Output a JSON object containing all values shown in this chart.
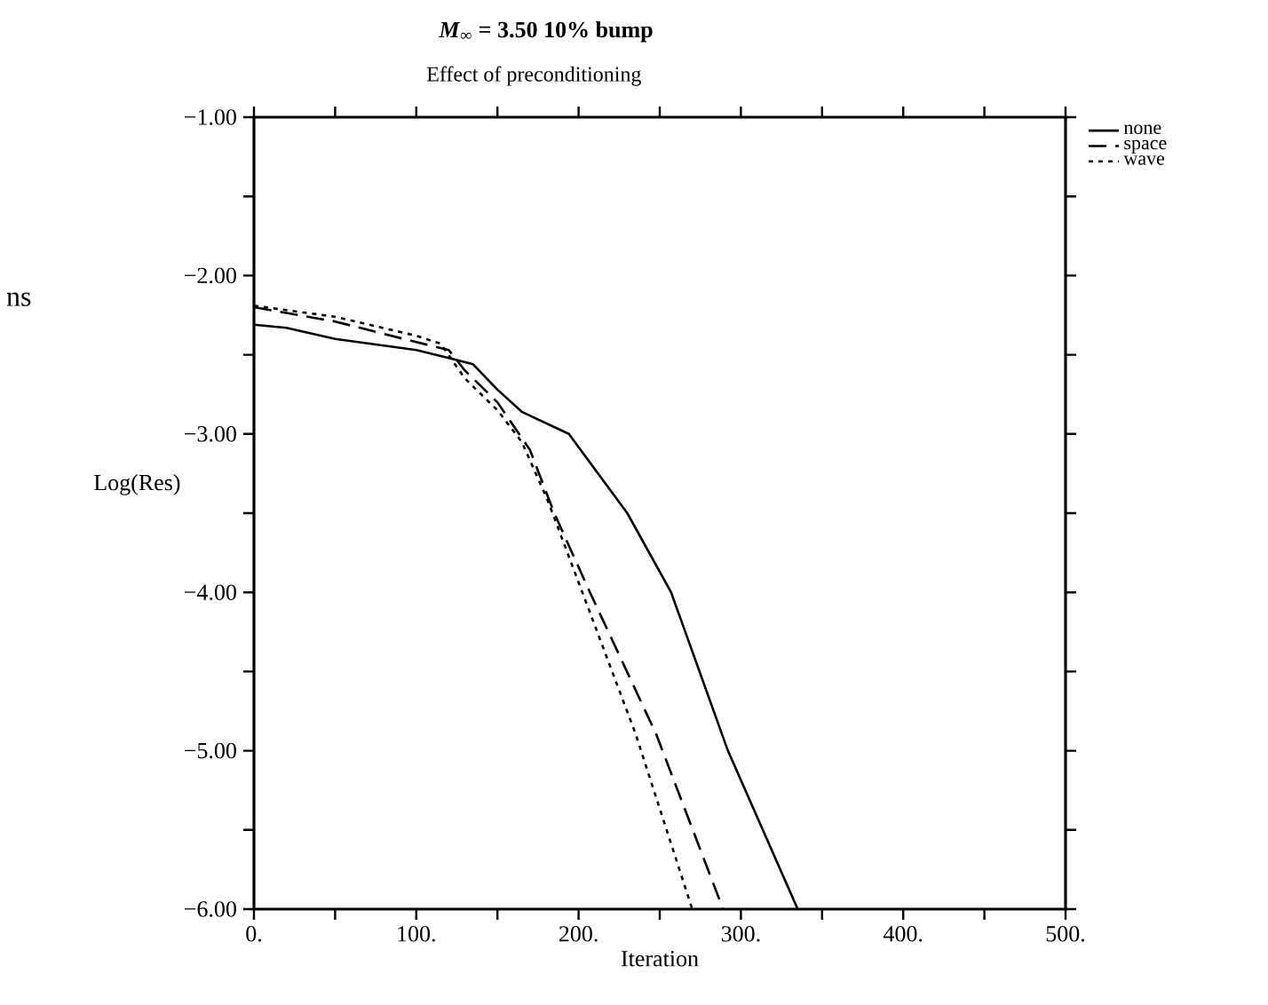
{
  "chart_data": {
    "type": "line",
    "title": "*M*$_{∞}$ = 3.50 10% bump",
    "subtitle": "Effect of preconditioning",
    "xlabel": "Iteration",
    "ylabel": "Log(Res)",
    "annotations": [
      "ns"
    ],
    "xlim": [
      0,
      500
    ],
    "ylim": [
      -6,
      -1
    ],
    "xticks": [
      {
        "value": 0,
        "label": "0."
      },
      {
        "value": 50,
        "label": null
      },
      {
        "value": 100,
        "label": "100."
      },
      {
        "value": 150,
        "label": null
      },
      {
        "value": 200,
        "label": "200."
      },
      {
        "value": 250,
        "label": null
      },
      {
        "value": 300,
        "label": "300."
      },
      {
        "value": 350,
        "label": null
      },
      {
        "value": 400,
        "label": "400."
      },
      {
        "value": 450,
        "label": null
      },
      {
        "value": 500,
        "label": "500."
      }
    ],
    "yticks": [
      {
        "value": -6,
        "label": "−6.00"
      },
      {
        "value": -5.5,
        "label": null
      },
      {
        "value": -5,
        "label": "−5.00"
      },
      {
        "value": -4.5,
        "label": null
      },
      {
        "value": -4,
        "label": "−4.00"
      },
      {
        "value": -3.5,
        "label": null
      },
      {
        "value": -3,
        "label": "−3.00"
      },
      {
        "value": -2.5,
        "label": null
      },
      {
        "value": -2,
        "label": "−2.00"
      },
      {
        "value": -1.5,
        "label": null
      },
      {
        "value": -1,
        "label": "−1.00"
      }
    ],
    "legend": "top right",
    "marker": "none",
    "grid": false,
    "series": [
      {
        "name": "none",
        "color": "#000000",
        "line_style": "solid",
        "x": [
          0,
          20,
          50,
          100,
          120,
          135,
          150,
          165,
          194,
          230,
          257,
          292,
          335
        ],
        "values": [
          -2.31,
          -2.33,
          -2.4,
          -2.47,
          -2.52,
          -2.56,
          -2.72,
          -2.86,
          -3.0,
          -3.5,
          -4.0,
          -5.0,
          -6.0
        ]
      },
      {
        "name": "space",
        "color": "#000000",
        "line_style": "dashed",
        "x": [
          0,
          50,
          100,
          120,
          130,
          150,
          170,
          185,
          207,
          248,
          289
        ],
        "values": [
          -2.2,
          -2.29,
          -2.42,
          -2.47,
          -2.6,
          -2.8,
          -3.1,
          -3.5,
          -4.0,
          -4.9,
          -6.0
        ]
      },
      {
        "name": "wave",
        "color": "#000000",
        "line_style": "dotted",
        "x": [
          0,
          50,
          100,
          115,
          130,
          150,
          165,
          181,
          235,
          270
        ],
        "values": [
          -2.19,
          -2.26,
          -2.38,
          -2.43,
          -2.65,
          -2.85,
          -3.05,
          -3.42,
          -4.89,
          -6.0
        ]
      }
    ]
  }
}
